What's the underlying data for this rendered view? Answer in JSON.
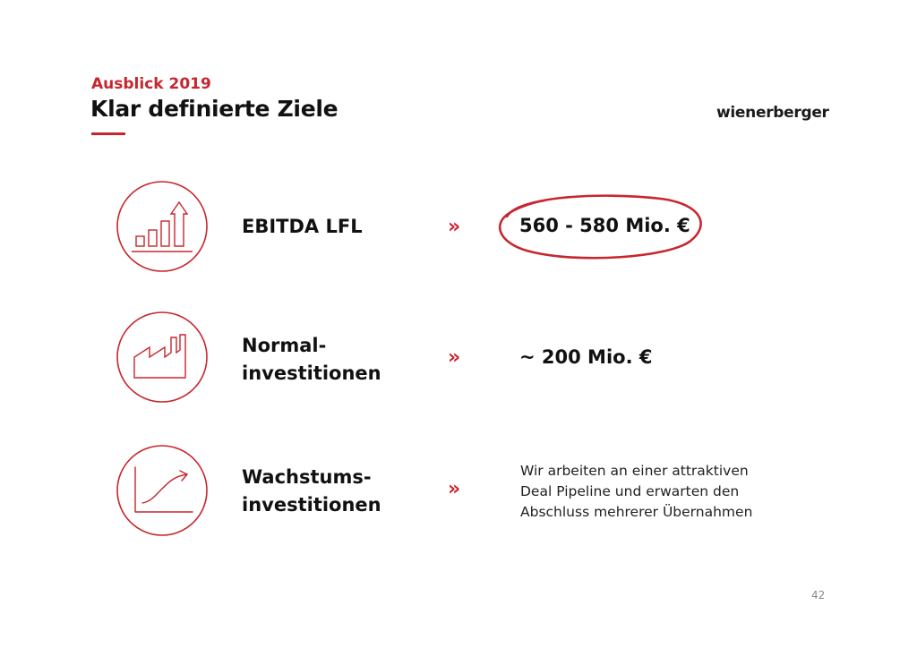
{
  "header": {
    "eyebrow": "Ausblick 2019",
    "title": "Klar definierte Ziele",
    "logo_text": "wienerberger"
  },
  "targets": [
    {
      "label_lines": [
        "EBITDA LFL"
      ],
      "value": "560 - 580 Mio. €",
      "highlighted": true,
      "icon": "bar-chart-growth-icon"
    },
    {
      "label_lines": [
        "Normal-",
        "investitionen"
      ],
      "value": "~ 200 Mio. €",
      "highlighted": false,
      "icon": "factory-icon"
    },
    {
      "label_lines": [
        "Wachstums-",
        "investitionen"
      ],
      "description_lines": [
        "Wir arbeiten an einer attraktiven",
        "Deal Pipeline und erwarten den",
        "Abschluss mehrerer Übernahmen"
      ],
      "highlighted": false,
      "icon": "growth-curve-icon"
    }
  ],
  "chevron_symbol": "»",
  "page_number": "42",
  "colors": {
    "accent": "#c8262e",
    "text": "#111111",
    "muted": "#8a8a8a"
  }
}
